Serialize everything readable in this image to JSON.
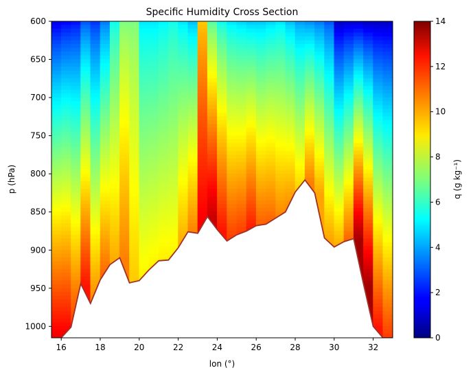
{
  "chart_data": {
    "type": "heatmap",
    "title": "Specific Humidity Cross Section",
    "xlabel": "lon (°)",
    "ylabel": "p (hPa)",
    "xlim": [
      15.5,
      33.0
    ],
    "ylim": [
      1015,
      600
    ],
    "y_inverted": true,
    "xticks": [
      16,
      18,
      20,
      22,
      24,
      26,
      28,
      30,
      32
    ],
    "yticks": [
      600,
      650,
      700,
      750,
      800,
      850,
      900,
      950,
      1000
    ],
    "colorbar": {
      "label": "q (g kg⁻¹)",
      "range": [
        0,
        14
      ],
      "ticks": [
        0,
        2,
        4,
        6,
        8,
        10,
        12,
        14
      ],
      "colormap": "jet"
    },
    "terrain_line_color": "#a0302a",
    "surface_pressure": {
      "lon": [
        15.5,
        16.0,
        16.5,
        17.0,
        17.5,
        18.0,
        18.5,
        19.0,
        19.5,
        20.0,
        20.5,
        21.0,
        21.5,
        22.0,
        22.5,
        23.0,
        23.5,
        24.0,
        24.5,
        25.0,
        25.5,
        26.0,
        26.5,
        27.0,
        27.5,
        28.0,
        28.5,
        29.0,
        29.5,
        30.0,
        30.5,
        31.0,
        31.5,
        32.0,
        32.5,
        33.0
      ],
      "p": [
        1015,
        1015,
        1001,
        944,
        970,
        939,
        919,
        910,
        943,
        940,
        926,
        914,
        913,
        897,
        876,
        878,
        856,
        873,
        888,
        880,
        875,
        868,
        866,
        858,
        850,
        824,
        808,
        825,
        884,
        896,
        889,
        885,
        944,
        1000,
        1015,
        1015
      ]
    },
    "q_columns": {
      "lon": [
        15.5,
        16.0,
        16.5,
        17.0,
        17.5,
        18.0,
        18.5,
        19.0,
        19.5,
        20.0,
        20.5,
        21.0,
        21.5,
        22.0,
        22.5,
        23.0,
        23.5,
        24.0,
        24.5,
        25.0,
        25.5,
        26.0,
        26.5,
        27.0,
        27.5,
        28.0,
        28.5,
        29.0,
        29.5,
        30.0,
        30.5,
        31.0,
        31.5,
        32.0,
        32.5,
        33.0
      ],
      "q_at_600hPa": [
        1.5,
        1.8,
        2.0,
        3.0,
        2.5,
        3.5,
        5.5,
        7.0,
        7.0,
        5.0,
        5.0,
        5.2,
        5.5,
        5.0,
        4.5,
        9.5,
        6.5,
        5.5,
        5.0,
        4.8,
        4.6,
        4.6,
        4.8,
        5.0,
        4.5,
        4.0,
        3.8,
        3.5,
        3.0,
        1.0,
        1.2,
        1.2,
        1.0,
        1.0,
        1.0,
        1.0
      ],
      "q_at_surface": [
        12.5,
        12.5,
        11.5,
        12.0,
        10.5,
        11.0,
        10.0,
        10.5,
        9.5,
        9.0,
        9.0,
        9.0,
        9.0,
        10.0,
        10.5,
        12.5,
        13.0,
        12.0,
        11.5,
        11.5,
        12.0,
        11.0,
        11.0,
        10.5,
        10.5,
        9.5,
        10.5,
        10.0,
        10.0,
        10.0,
        11.0,
        13.5,
        13.5,
        12.0,
        11.5,
        11.0
      ]
    }
  }
}
